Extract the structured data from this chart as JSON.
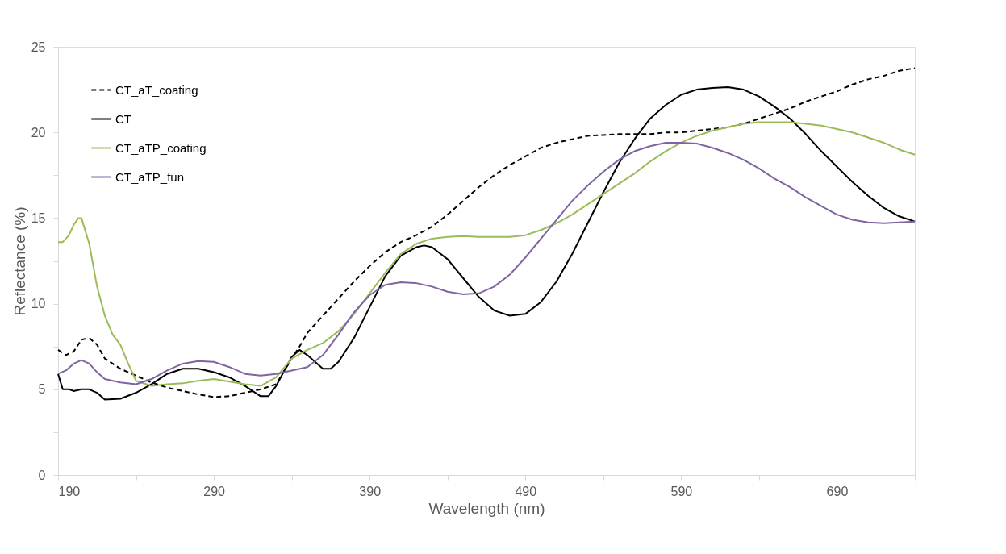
{
  "chart_data": {
    "type": "line",
    "xlabel": "Wavelength (nm)",
    "ylabel": "Reflectance (%)",
    "xlim": [
      190,
      740
    ],
    "ylim": [
      0,
      25
    ],
    "xticks": [
      190,
      {
        "value": 240,
        "label": null
      },
      290,
      {
        "value": 340,
        "label": null
      },
      390,
      {
        "value": 440,
        "label": null
      },
      490,
      {
        "value": 540,
        "label": null
      },
      590,
      {
        "value": 640,
        "label": null
      },
      690,
      {
        "value": 740,
        "label": null
      }
    ],
    "yticks": [
      0,
      {
        "value": 2.5,
        "label": null
      },
      5,
      {
        "value": 7.5,
        "label": null
      },
      10,
      {
        "value": 12.5,
        "label": null
      },
      15,
      {
        "value": 17.5,
        "label": null
      },
      20,
      {
        "value": 22.5,
        "label": null
      },
      25
    ],
    "grid": false,
    "legend": "top left",
    "marker": "none",
    "series": [
      {
        "name": "CT_aT_coating",
        "color": "#000000",
        "line_style": "dashed",
        "x": [
          190,
          195,
          200,
          205,
          210,
          215,
          220,
          230,
          240,
          250,
          260,
          270,
          280,
          290,
          300,
          310,
          320,
          330,
          340,
          345,
          350,
          360,
          370,
          380,
          390,
          400,
          410,
          420,
          430,
          440,
          450,
          460,
          470,
          480,
          490,
          500,
          510,
          520,
          530,
          540,
          550,
          560,
          570,
          580,
          590,
          600,
          610,
          620,
          630,
          640,
          650,
          660,
          670,
          680,
          690,
          700,
          710,
          720,
          730,
          740
        ],
        "values": [
          7.3,
          7.0,
          7.2,
          7.9,
          8.0,
          7.6,
          6.8,
          6.2,
          5.8,
          5.4,
          5.1,
          4.9,
          4.7,
          4.55,
          4.6,
          4.8,
          5.0,
          5.3,
          6.8,
          7.5,
          8.3,
          9.3,
          10.3,
          11.3,
          12.2,
          13.0,
          13.6,
          14.0,
          14.5,
          15.2,
          16.0,
          16.8,
          17.5,
          18.1,
          18.6,
          19.1,
          19.4,
          19.6,
          19.8,
          19.85,
          19.9,
          19.9,
          19.9,
          20.0,
          20.0,
          20.1,
          20.2,
          20.3,
          20.5,
          20.8,
          21.1,
          21.4,
          21.8,
          22.1,
          22.4,
          22.8,
          23.1,
          23.3,
          23.6,
          23.75
        ]
      },
      {
        "name": "CT",
        "color": "#000000",
        "line_style": "solid",
        "x": [
          190,
          193,
          197,
          200,
          205,
          210,
          215,
          220,
          230,
          240,
          250,
          260,
          270,
          280,
          290,
          300,
          310,
          320,
          325,
          330,
          340,
          345,
          350,
          360,
          365,
          370,
          380,
          390,
          400,
          410,
          420,
          425,
          430,
          440,
          450,
          460,
          470,
          480,
          490,
          500,
          510,
          520,
          530,
          540,
          550,
          560,
          570,
          580,
          590,
          600,
          610,
          620,
          630,
          640,
          650,
          660,
          670,
          680,
          690,
          700,
          710,
          720,
          730,
          740
        ],
        "values": [
          5.9,
          5.0,
          5.0,
          4.9,
          5.0,
          5.0,
          4.8,
          4.4,
          4.45,
          4.8,
          5.3,
          5.9,
          6.2,
          6.2,
          6.0,
          5.7,
          5.2,
          4.6,
          4.6,
          5.2,
          6.9,
          7.3,
          7.0,
          6.2,
          6.2,
          6.6,
          8.0,
          9.8,
          11.6,
          12.8,
          13.3,
          13.4,
          13.3,
          12.6,
          11.5,
          10.4,
          9.6,
          9.3,
          9.4,
          10.1,
          11.3,
          12.9,
          14.7,
          16.5,
          18.2,
          19.6,
          20.8,
          21.6,
          22.2,
          22.5,
          22.6,
          22.65,
          22.5,
          22.1,
          21.5,
          20.8,
          19.9,
          18.9,
          18.0,
          17.1,
          16.3,
          15.6,
          15.1,
          14.8
        ]
      },
      {
        "name": "CT_aTP_coating",
        "color": "#9bbb59",
        "line_style": "solid",
        "x": [
          190,
          193,
          197,
          200,
          203,
          205,
          210,
          215,
          220,
          225,
          230,
          235,
          240,
          250,
          260,
          270,
          280,
          290,
          300,
          310,
          320,
          330,
          340,
          350,
          360,
          370,
          380,
          390,
          400,
          410,
          420,
          430,
          440,
          450,
          460,
          470,
          480,
          490,
          500,
          510,
          520,
          530,
          540,
          550,
          560,
          570,
          580,
          590,
          600,
          610,
          620,
          630,
          640,
          650,
          660,
          670,
          680,
          690,
          700,
          710,
          720,
          730,
          740
        ],
        "values": [
          13.6,
          13.6,
          14.0,
          14.6,
          15.0,
          15.0,
          13.5,
          11.0,
          9.3,
          8.2,
          7.6,
          6.5,
          5.5,
          5.2,
          5.3,
          5.35,
          5.5,
          5.6,
          5.45,
          5.3,
          5.2,
          5.7,
          6.8,
          7.3,
          7.7,
          8.4,
          9.4,
          10.6,
          11.8,
          12.9,
          13.5,
          13.8,
          13.9,
          13.95,
          13.9,
          13.9,
          13.9,
          14.0,
          14.3,
          14.7,
          15.2,
          15.8,
          16.4,
          17.0,
          17.6,
          18.3,
          18.9,
          19.4,
          19.8,
          20.1,
          20.3,
          20.5,
          20.6,
          20.6,
          20.6,
          20.5,
          20.4,
          20.2,
          20.0,
          19.7,
          19.4,
          19.0,
          18.7
        ]
      },
      {
        "name": "CT_aTP_fun",
        "color": "#8064a2",
        "line_style": "solid",
        "x": [
          190,
          195,
          200,
          205,
          210,
          215,
          220,
          230,
          240,
          250,
          260,
          270,
          280,
          290,
          300,
          310,
          320,
          330,
          340,
          350,
          360,
          370,
          380,
          390,
          400,
          410,
          420,
          430,
          440,
          450,
          460,
          470,
          480,
          490,
          500,
          510,
          520,
          530,
          540,
          550,
          560,
          570,
          580,
          590,
          600,
          610,
          620,
          630,
          640,
          650,
          660,
          670,
          680,
          690,
          700,
          710,
          720,
          730,
          740
        ],
        "values": [
          5.9,
          6.1,
          6.5,
          6.7,
          6.5,
          6.0,
          5.6,
          5.4,
          5.3,
          5.6,
          6.1,
          6.5,
          6.65,
          6.6,
          6.3,
          5.9,
          5.8,
          5.9,
          6.1,
          6.3,
          7.0,
          8.2,
          9.5,
          10.5,
          11.1,
          11.25,
          11.2,
          11.0,
          10.7,
          10.55,
          10.6,
          11.0,
          11.7,
          12.7,
          13.8,
          14.9,
          16.0,
          16.9,
          17.7,
          18.4,
          18.9,
          19.2,
          19.4,
          19.4,
          19.35,
          19.1,
          18.8,
          18.4,
          17.9,
          17.3,
          16.8,
          16.2,
          15.7,
          15.2,
          14.9,
          14.75,
          14.7,
          14.75,
          14.8
        ]
      }
    ]
  }
}
